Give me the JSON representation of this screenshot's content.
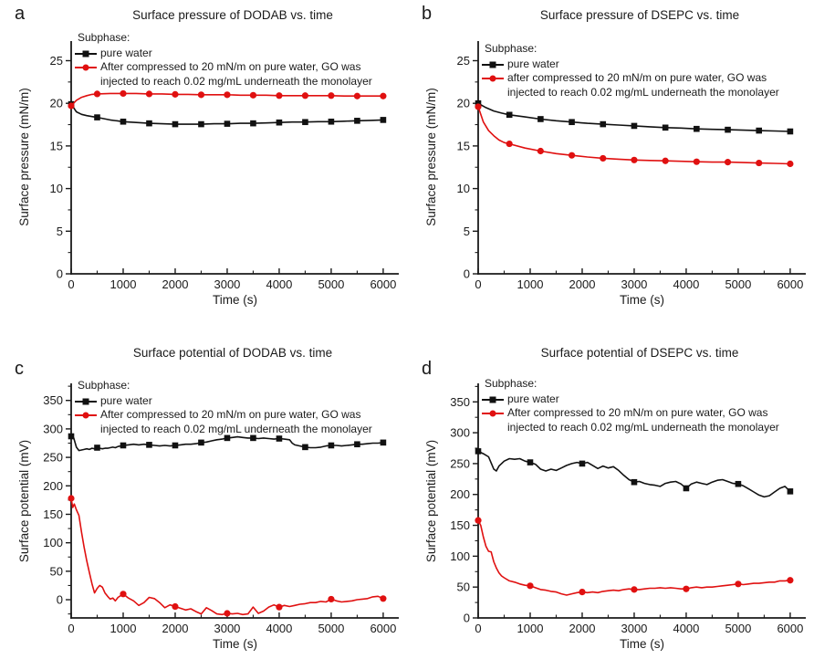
{
  "figure": {
    "background": "#ffffff",
    "axis_color": "#1a1a1a"
  },
  "chart_data": [
    {
      "panel_label": "a",
      "type": "line",
      "title": "Surface pressure of DODAB vs. time",
      "xlabel": "Time (s)",
      "ylabel": "Surface pressure (mN/m)",
      "legend_title": "Subphase:",
      "legend_position": "top-left",
      "grid": false,
      "xlim": [
        0,
        6300
      ],
      "ylim": [
        0,
        27.3
      ],
      "xticks": [
        0,
        1000,
        2000,
        3000,
        4000,
        5000,
        6000
      ],
      "yticks": [
        0,
        5,
        10,
        15,
        20,
        25
      ],
      "x_minor_step": 500,
      "y_minor_step": 2.5,
      "series": [
        {
          "name": "pure water",
          "label_lines": [
            "pure water"
          ],
          "color": "#111111",
          "marker": "square",
          "marker_interval": 500,
          "x": [
            0,
            100,
            200,
            300,
            400,
            500,
            750,
            1000,
            1250,
            1500,
            1750,
            2000,
            2250,
            2500,
            2750,
            3000,
            3250,
            3500,
            3750,
            4000,
            4250,
            4500,
            4750,
            5000,
            5250,
            5500,
            5750,
            6000
          ],
          "y": [
            19.9,
            19.0,
            18.7,
            18.55,
            18.45,
            18.35,
            18.05,
            17.85,
            17.75,
            17.65,
            17.6,
            17.55,
            17.55,
            17.55,
            17.6,
            17.6,
            17.65,
            17.65,
            17.7,
            17.75,
            17.8,
            17.8,
            17.85,
            17.85,
            17.9,
            17.95,
            18.0,
            18.05
          ]
        },
        {
          "name": "After compressed to 20 mN/m on pure water, GO was injected to reach 0.02 mg/mL underneath the monolayer",
          "label_lines": [
            "After compressed to 20 mN/m on pure water, GO was",
            "injected to reach 0.02 mg/mL underneath the monolayer"
          ],
          "color": "#e01010",
          "marker": "circle",
          "marker_interval": 500,
          "x": [
            0,
            100,
            200,
            300,
            400,
            500,
            750,
            1000,
            1250,
            1500,
            1750,
            2000,
            2250,
            2500,
            2750,
            3000,
            3250,
            3500,
            3750,
            4000,
            4250,
            4500,
            4750,
            5000,
            5250,
            5500,
            5750,
            6000
          ],
          "y": [
            19.7,
            20.35,
            20.7,
            20.9,
            21.05,
            21.1,
            21.15,
            21.15,
            21.15,
            21.1,
            21.1,
            21.05,
            21.05,
            21.0,
            21.0,
            21.0,
            20.95,
            20.95,
            20.95,
            20.9,
            20.9,
            20.9,
            20.9,
            20.9,
            20.85,
            20.85,
            20.85,
            20.85
          ]
        }
      ]
    },
    {
      "panel_label": "b",
      "type": "line",
      "title": "Surface pressure of DSEPC vs. time",
      "xlabel": "Time (s)",
      "ylabel": "Surface pressure (mN/m)",
      "legend_title": "Subphase:",
      "legend_position": "top-left",
      "grid": false,
      "xlim": [
        0,
        6300
      ],
      "ylim": [
        0,
        27.3
      ],
      "xticks": [
        0,
        1000,
        2000,
        3000,
        4000,
        5000,
        6000
      ],
      "yticks": [
        0,
        5,
        10,
        15,
        20,
        25
      ],
      "x_minor_step": 500,
      "y_minor_step": 2.5,
      "series": [
        {
          "name": "pure water",
          "label_lines": [
            "pure water"
          ],
          "color": "#111111",
          "marker": "square",
          "marker_interval": 600,
          "x": [
            0,
            150,
            300,
            450,
            600,
            900,
            1200,
            1500,
            1800,
            2100,
            2400,
            2700,
            3000,
            3300,
            3600,
            3900,
            4200,
            4500,
            4800,
            5100,
            5400,
            5700,
            6000
          ],
          "y": [
            20.0,
            19.5,
            19.1,
            18.85,
            18.65,
            18.4,
            18.15,
            17.95,
            17.8,
            17.65,
            17.55,
            17.45,
            17.35,
            17.25,
            17.15,
            17.1,
            17.0,
            16.95,
            16.9,
            16.85,
            16.8,
            16.75,
            16.7
          ]
        },
        {
          "name": "after compressed to 20 mN/m on pure water, GO was injected to reach 0.02 mg/mL underneath the monolayer",
          "label_lines": [
            "after compressed to 20 mN/m on pure water, GO was",
            "injected to reach 0.02 mg/mL underneath the monolayer"
          ],
          "color": "#e01010",
          "marker": "circle",
          "marker_interval": 600,
          "x": [
            0,
            100,
            200,
            300,
            400,
            500,
            600,
            900,
            1200,
            1500,
            1800,
            2100,
            2400,
            2700,
            3000,
            3300,
            3600,
            3900,
            4200,
            4500,
            4800,
            5100,
            5400,
            5700,
            6000
          ],
          "y": [
            19.6,
            17.8,
            16.8,
            16.2,
            15.7,
            15.4,
            15.25,
            14.75,
            14.4,
            14.1,
            13.9,
            13.7,
            13.55,
            13.45,
            13.35,
            13.3,
            13.25,
            13.2,
            13.15,
            13.1,
            13.1,
            13.05,
            13.0,
            12.95,
            12.9
          ]
        }
      ]
    },
    {
      "panel_label": "c",
      "type": "line",
      "title": "Surface potential of DODAB vs. time",
      "xlabel": "Time (s)",
      "ylabel": "Surface potential (mV)",
      "legend_title": "Subphase:",
      "legend_position": "top-left",
      "grid": false,
      "xlim": [
        0,
        6300
      ],
      "ylim": [
        -32,
        380
      ],
      "xticks": [
        0,
        1000,
        2000,
        3000,
        4000,
        5000,
        6000
      ],
      "yticks": [
        0,
        50,
        100,
        150,
        200,
        250,
        300,
        350
      ],
      "x_minor_step": 500,
      "y_minor_step": 25,
      "series": [
        {
          "name": "pure water",
          "label_lines": [
            "pure water"
          ],
          "color": "#111111",
          "marker": "square",
          "marker_interval": 500,
          "x": [
            0,
            50,
            100,
            150,
            200,
            250,
            300,
            350,
            400,
            450,
            500,
            550,
            600,
            650,
            700,
            750,
            800,
            850,
            900,
            950,
            1000,
            1100,
            1200,
            1300,
            1400,
            1500,
            1600,
            1700,
            1800,
            1900,
            2000,
            2100,
            2200,
            2300,
            2400,
            2500,
            2600,
            2700,
            2800,
            2900,
            3000,
            3100,
            3200,
            3300,
            3400,
            3500,
            3600,
            3700,
            3800,
            3900,
            4000,
            4100,
            4200,
            4250,
            4300,
            4400,
            4500,
            4600,
            4700,
            4800,
            4900,
            5000,
            5100,
            5200,
            5300,
            5400,
            5500,
            5600,
            5700,
            5800,
            5900,
            6000
          ],
          "y": [
            287,
            284,
            268,
            262,
            263,
            264,
            265,
            264,
            266,
            265,
            267,
            266,
            265,
            266,
            266,
            267,
            268,
            267,
            269,
            270,
            271,
            272,
            273,
            272,
            273,
            272,
            271,
            270,
            271,
            270,
            271,
            272,
            273,
            273,
            274,
            276,
            277,
            279,
            281,
            282,
            284,
            285,
            286,
            285,
            284,
            284,
            283,
            284,
            283,
            282,
            283,
            282,
            281,
            275,
            272,
            270,
            268,
            267,
            267,
            268,
            270,
            271,
            271,
            270,
            271,
            272,
            273,
            273,
            274,
            275,
            275,
            276
          ]
        },
        {
          "name": "After compressed to 20 mN/m on pure water, GO was injected to reach 0.02 mg/mL underneath the monolayer",
          "label_lines": [
            "After compressed to 20 mN/m on pure water, GO was",
            "injected to reach 0.02 mg/mL underneath the monolayer"
          ],
          "color": "#e01010",
          "marker": "circle",
          "marker_interval": 1000,
          "x": [
            0,
            30,
            60,
            100,
            150,
            200,
            250,
            300,
            350,
            400,
            450,
            500,
            550,
            600,
            650,
            700,
            750,
            800,
            850,
            900,
            950,
            1000,
            1100,
            1200,
            1300,
            1400,
            1500,
            1600,
            1700,
            1800,
            1900,
            2000,
            2100,
            2200,
            2300,
            2400,
            2500,
            2600,
            2700,
            2800,
            2900,
            3000,
            3100,
            3200,
            3300,
            3400,
            3500,
            3600,
            3700,
            3800,
            3900,
            4000,
            4100,
            4200,
            4300,
            4400,
            4500,
            4600,
            4700,
            4800,
            4900,
            5000,
            5100,
            5200,
            5300,
            5400,
            5500,
            5600,
            5700,
            5800,
            5900,
            6000
          ],
          "y": [
            178,
            162,
            168,
            158,
            148,
            118,
            92,
            68,
            48,
            28,
            12,
            20,
            25,
            22,
            12,
            6,
            1,
            3,
            -2,
            4,
            7,
            10,
            3,
            -2,
            -10,
            -5,
            4,
            2,
            -5,
            -14,
            -9,
            -12,
            -15,
            -18,
            -16,
            -21,
            -25,
            -14,
            -19,
            -25,
            -26,
            -24,
            -25,
            -24,
            -26,
            -25,
            -13,
            -24,
            -20,
            -13,
            -9,
            -13,
            -10,
            -12,
            -10,
            -8,
            -7,
            -5,
            -5,
            -3,
            -4,
            1,
            -2,
            -4,
            -3,
            -2,
            0,
            1,
            2,
            5,
            6,
            2
          ]
        }
      ]
    },
    {
      "panel_label": "d",
      "type": "line",
      "title": "Surface potential of DSEPC vs. time",
      "xlabel": "Time (s)",
      "ylabel": "Surface potential (mV)",
      "legend_title": "Subphase:",
      "legend_position": "top-left",
      "grid": false,
      "xlim": [
        0,
        6300
      ],
      "ylim": [
        0,
        380
      ],
      "xticks": [
        0,
        1000,
        2000,
        3000,
        4000,
        5000,
        6000
      ],
      "yticks": [
        0,
        50,
        100,
        150,
        200,
        250,
        300,
        350
      ],
      "x_minor_step": 500,
      "y_minor_step": 25,
      "series": [
        {
          "name": "pure water",
          "label_lines": [
            "pure water"
          ],
          "color": "#111111",
          "marker": "square",
          "marker_interval": 1000,
          "x": [
            0,
            100,
            200,
            300,
            350,
            400,
            500,
            600,
            700,
            800,
            900,
            1000,
            1100,
            1200,
            1300,
            1400,
            1500,
            1600,
            1700,
            1800,
            1900,
            2000,
            2100,
            2200,
            2300,
            2400,
            2500,
            2600,
            2700,
            2800,
            2900,
            3000,
            3100,
            3200,
            3300,
            3400,
            3500,
            3600,
            3700,
            3800,
            3900,
            4000,
            4100,
            4200,
            4300,
            4400,
            4500,
            4600,
            4700,
            4800,
            4900,
            5000,
            5100,
            5200,
            5300,
            5400,
            5500,
            5600,
            5700,
            5800,
            5900,
            6000
          ],
          "y": [
            270,
            266,
            261,
            241,
            238,
            246,
            254,
            258,
            257,
            258,
            254,
            252,
            249,
            241,
            238,
            241,
            239,
            243,
            247,
            250,
            252,
            250,
            252,
            247,
            242,
            246,
            243,
            245,
            239,
            231,
            224,
            220,
            221,
            218,
            216,
            215,
            213,
            218,
            220,
            221,
            217,
            210,
            217,
            220,
            218,
            216,
            220,
            223,
            224,
            221,
            218,
            217,
            214,
            209,
            204,
            199,
            196,
            198,
            204,
            210,
            213,
            205
          ]
        },
        {
          "name": "After compressed to 20 mN/m on pure water, GO was injected to reach 0.02 mg/mL underneath the monolayer",
          "label_lines": [
            "After compressed to 20 mN/m on pure water, GO was",
            "injected to reach 0.02 mg/mL underneath the monolayer"
          ],
          "color": "#e01010",
          "marker": "circle",
          "marker_interval": 1000,
          "x": [
            0,
            50,
            100,
            150,
            200,
            250,
            300,
            350,
            400,
            450,
            500,
            600,
            700,
            800,
            900,
            1000,
            1100,
            1200,
            1300,
            1400,
            1500,
            1600,
            1700,
            1800,
            1900,
            2000,
            2100,
            2200,
            2300,
            2400,
            2500,
            2600,
            2700,
            2800,
            2900,
            3000,
            3100,
            3200,
            3300,
            3400,
            3500,
            3600,
            3700,
            3800,
            3900,
            4000,
            4100,
            4200,
            4300,
            4400,
            4500,
            4600,
            4700,
            4800,
            4900,
            5000,
            5100,
            5200,
            5300,
            5400,
            5500,
            5600,
            5700,
            5800,
            5900,
            6000
          ],
          "y": [
            158,
            150,
            131,
            116,
            108,
            107,
            91,
            81,
            73,
            68,
            65,
            60,
            58,
            55,
            53,
            52,
            49,
            46,
            45,
            43,
            42,
            39,
            37,
            39,
            41,
            42,
            41,
            42,
            41,
            43,
            44,
            45,
            44,
            46,
            47,
            46,
            46,
            47,
            48,
            48,
            49,
            48,
            49,
            48,
            47,
            47,
            49,
            50,
            49,
            50,
            50,
            51,
            52,
            53,
            54,
            55,
            54,
            55,
            56,
            56,
            57,
            58,
            58,
            60,
            60,
            61
          ]
        }
      ]
    }
  ]
}
